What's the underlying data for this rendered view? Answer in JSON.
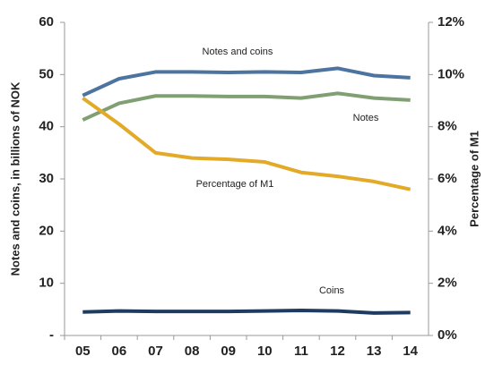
{
  "chart_data": {
    "type": "line",
    "categories": [
      "05",
      "06",
      "07",
      "08",
      "09",
      "10",
      "11",
      "12",
      "13",
      "14"
    ],
    "y_label": "Notes and coins, in billions of NOK",
    "y2_label": "Percentage of  M1",
    "ylim": [
      0,
      60
    ],
    "yticks": [
      {
        "value": 0,
        "label": "-"
      },
      10,
      20,
      30,
      40,
      50,
      60
    ],
    "y2lim": [
      0,
      12
    ],
    "y2ticks": [
      {
        "value": 0,
        "label": "0%"
      },
      {
        "value": 2,
        "label": "2%"
      },
      {
        "value": 4,
        "label": "4%"
      },
      {
        "value": 6,
        "label": "6%"
      },
      {
        "value": 8,
        "label": "8%"
      },
      {
        "value": 10,
        "label": "10%"
      },
      {
        "value": 12,
        "label": "12%"
      }
    ],
    "series": [
      {
        "name": "Notes and coins",
        "color": "#4d73a0",
        "values": [
          46,
          49.2,
          50.5,
          50.5,
          50.4,
          50.5,
          50.4,
          51.2,
          49.8,
          49.4
        ]
      },
      {
        "name": "Notes",
        "color": "#809f72",
        "values": [
          41.3,
          44.5,
          45.9,
          45.9,
          45.8,
          45.8,
          45.5,
          46.4,
          45.5,
          45.1
        ]
      },
      {
        "name": "Coins",
        "color": "#1f3b60",
        "values": [
          4.5,
          4.7,
          4.6,
          4.6,
          4.6,
          4.7,
          4.8,
          4.7,
          4.3,
          4.4
        ]
      },
      {
        "name": "Percentage of M1",
        "color": "#e3aa2a",
        "axis": "y2",
        "values": [
          9.1,
          8.1,
          7.0,
          6.8,
          6.75,
          6.65,
          6.25,
          6.1,
          5.9,
          5.6
        ]
      }
    ]
  }
}
